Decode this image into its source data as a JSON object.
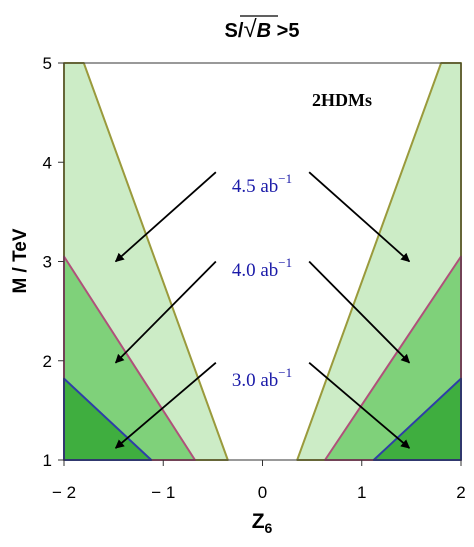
{
  "chart_data": {
    "type": "area",
    "title": {
      "prefix": "S/",
      "sqrt": "√",
      "var": "B",
      "suffix": " >5"
    },
    "xlabel": {
      "base": "Z",
      "sub": "6"
    },
    "ylabel": "M / TeV",
    "xlim": [
      -2,
      2
    ],
    "ylim": [
      1,
      5
    ],
    "x_ticks": [
      -2,
      -1,
      0,
      1,
      2
    ],
    "y_ticks": [
      1,
      2,
      3,
      4,
      5
    ],
    "x_tick_labels": [
      "− 2",
      "− 1",
      "0",
      "1",
      "2"
    ],
    "y_tick_labels": [
      "1",
      "2",
      "3",
      "4",
      "5"
    ],
    "model_label": "2HDMs",
    "series": [
      {
        "luminosity": "4.5 ab",
        "exponent": "−1",
        "fill": "#ccecc6",
        "boundary": "#9a9a3c",
        "left": [
          [
            -2,
            1
          ],
          [
            -2,
            5
          ],
          [
            -1.8,
            5
          ],
          [
            -0.35,
            1
          ]
        ],
        "right": [
          [
            0.35,
            1
          ],
          [
            1.8,
            5
          ],
          [
            2,
            5
          ],
          [
            2,
            1
          ]
        ]
      },
      {
        "luminosity": "4.0 ab",
        "exponent": "−1",
        "fill": "#7fd17a",
        "boundary": "#b0507a",
        "left": [
          [
            -2,
            1
          ],
          [
            -2,
            3.05
          ],
          [
            -0.68,
            1
          ]
        ],
        "right": [
          [
            0.63,
            1
          ],
          [
            2,
            3.05
          ],
          [
            2,
            1
          ]
        ]
      },
      {
        "luminosity": "3.0 ab",
        "exponent": "−1",
        "fill": "#3fae3f",
        "boundary": "#2e3ea8",
        "left": [
          [
            -2,
            1
          ],
          [
            -2,
            1.82
          ],
          [
            -1.12,
            1
          ]
        ],
        "right": [
          [
            1.12,
            1
          ],
          [
            2,
            1.82
          ],
          [
            2,
            1
          ]
        ]
      }
    ],
    "arrows": [
      {
        "from": [
          -0.47,
          3.9
        ],
        "to": [
          -1.48,
          3.0
        ]
      },
      {
        "from": [
          -0.47,
          3.0
        ],
        "to": [
          -1.48,
          1.98
        ]
      },
      {
        "from": [
          -0.47,
          1.98
        ],
        "to": [
          -1.48,
          1.12
        ]
      },
      {
        "from": [
          0.47,
          3.9
        ],
        "to": [
          1.48,
          3.0
        ]
      },
      {
        "from": [
          0.47,
          3.0
        ],
        "to": [
          1.48,
          1.98
        ]
      },
      {
        "from": [
          0.47,
          1.98
        ],
        "to": [
          1.48,
          1.12
        ]
      }
    ]
  }
}
